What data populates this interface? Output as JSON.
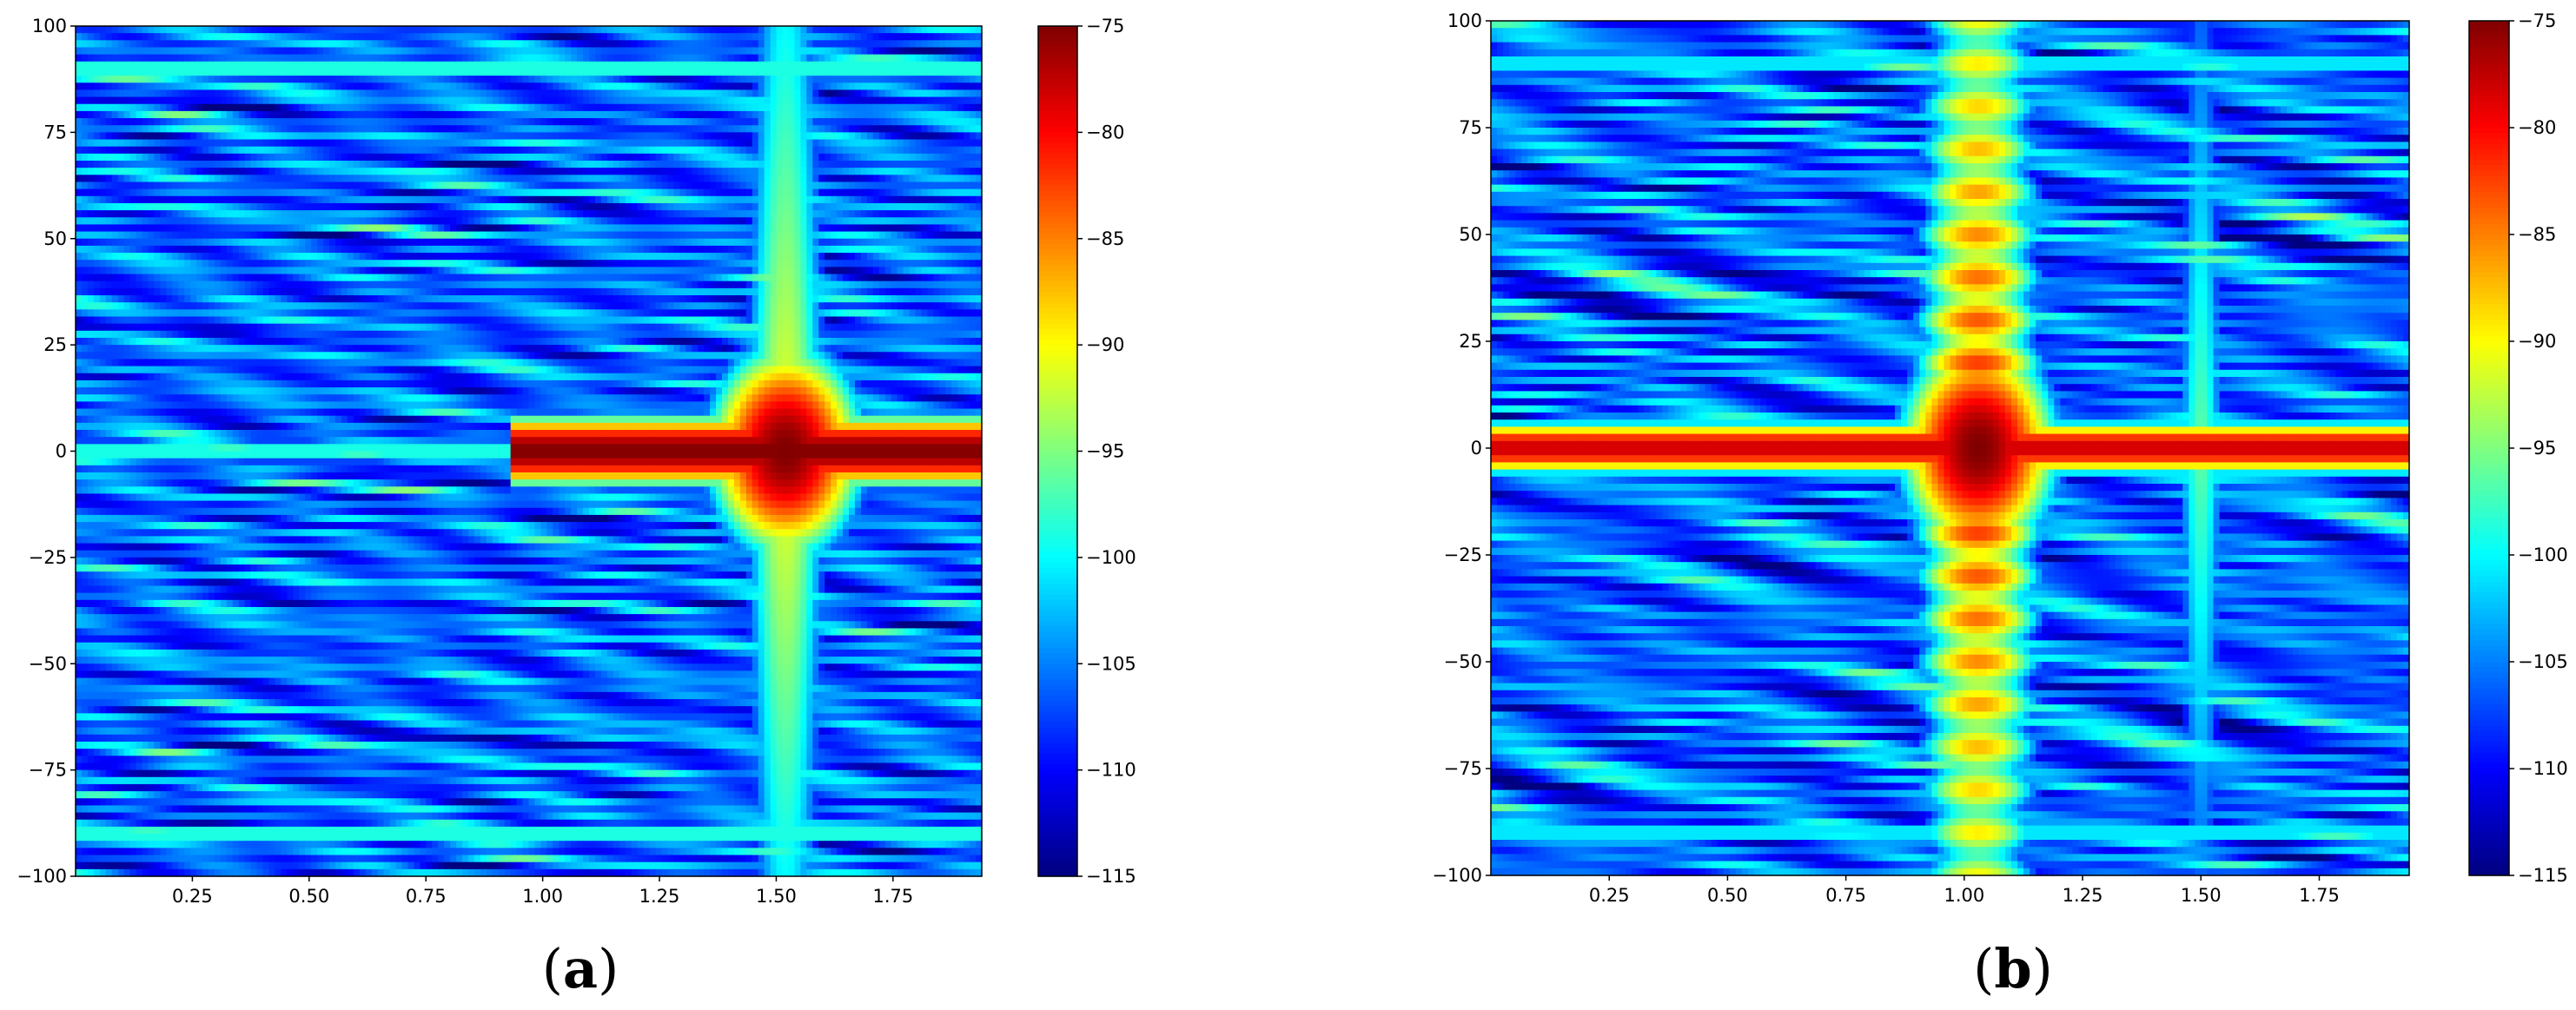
{
  "figure": {
    "panels": [
      {
        "label_open": "(",
        "label_letter": "a",
        "label_close": ")"
      },
      {
        "label_open": "(",
        "label_letter": "b",
        "label_close": ")"
      }
    ]
  },
  "chart_data": [
    {
      "type": "heatmap",
      "title": "",
      "xlabel": "",
      "ylabel": "",
      "xlim": [
        0.0,
        1.94
      ],
      "ylim": [
        -100,
        100
      ],
      "x_ticks": [
        0.25,
        0.5,
        0.75,
        1.0,
        1.25,
        1.5,
        1.75
      ],
      "x_tick_labels": [
        "0.25",
        "0.50",
        "0.75",
        "1.00",
        "1.25",
        "1.50",
        "1.75"
      ],
      "y_ticks": [
        100,
        75,
        50,
        25,
        0,
        -25,
        -50,
        -75,
        -100
      ],
      "y_tick_labels": [
        "100",
        "75",
        "50",
        "25",
        "0",
        "−25",
        "−50",
        "−75",
        "−100"
      ],
      "colorbar": {
        "colormap": "jet",
        "range": [
          -115,
          -75
        ],
        "ticks": [
          -75,
          -80,
          -85,
          -90,
          -95,
          -100,
          -105,
          -110,
          -115
        ],
        "tick_labels": [
          "−75",
          "−80",
          "−85",
          "−90",
          "−95",
          "−100",
          "−105",
          "−110",
          "−115"
        ]
      },
      "background_level": -106,
      "features": [
        {
          "kind": "horizontal_band",
          "y": 0,
          "x_from": 0.93,
          "x_to": 1.94,
          "value": -75,
          "half_width": 4
        },
        {
          "kind": "horizontal_band",
          "y": 0,
          "x_from": 0.0,
          "x_to": 0.93,
          "value": -98,
          "half_width": 2
        },
        {
          "kind": "vertical_band",
          "x": 1.52,
          "value": -90,
          "half_width": 0.05
        },
        {
          "kind": "hotspot",
          "x": 1.52,
          "y": 0,
          "value": -75
        },
        {
          "kind": "horizontal_band",
          "y": 90,
          "x_from": 0.0,
          "x_to": 1.94,
          "value": -97,
          "half_width": 1.5
        },
        {
          "kind": "horizontal_band",
          "y": -90,
          "x_from": 0.0,
          "x_to": 1.94,
          "value": -97,
          "half_width": 1.5
        }
      ]
    },
    {
      "type": "heatmap",
      "title": "",
      "xlabel": "",
      "ylabel": "",
      "xlim": [
        0.0,
        1.94
      ],
      "ylim": [
        -100,
        100
      ],
      "x_ticks": [
        0.25,
        0.5,
        0.75,
        1.0,
        1.25,
        1.5,
        1.75
      ],
      "x_tick_labels": [
        "0.25",
        "0.50",
        "0.75",
        "1.00",
        "1.25",
        "1.50",
        "1.75"
      ],
      "y_ticks": [
        100,
        75,
        50,
        25,
        0,
        -25,
        -50,
        -75,
        -100
      ],
      "y_tick_labels": [
        "100",
        "75",
        "50",
        "25",
        "0",
        "−25",
        "−50",
        "−75",
        "−100"
      ],
      "colorbar": {
        "colormap": "jet",
        "range": [
          -115,
          -75
        ],
        "ticks": [
          -75,
          -80,
          -85,
          -90,
          -95,
          -100,
          -105,
          -110,
          -115
        ],
        "tick_labels": [
          "−75",
          "−80",
          "−85",
          "−90",
          "−95",
          "−100",
          "−105",
          "−110",
          "−115"
        ]
      },
      "background_level": -106,
      "features": [
        {
          "kind": "horizontal_band",
          "y": 0,
          "x_from": 0.0,
          "x_to": 1.94,
          "value": -78,
          "half_width": 3
        },
        {
          "kind": "vertical_band",
          "x": 1.03,
          "value": -84,
          "half_width": 0.07,
          "modulated": true
        },
        {
          "kind": "hotspot",
          "x": 1.03,
          "y": 0,
          "value": -75
        },
        {
          "kind": "vertical_band",
          "x": 1.5,
          "value": -96,
          "half_width": 0.03
        },
        {
          "kind": "horizontal_band",
          "y": 90,
          "x_from": 0.0,
          "x_to": 1.94,
          "value": -98,
          "half_width": 1.2
        },
        {
          "kind": "horizontal_band",
          "y": -90,
          "x_from": 0.0,
          "x_to": 1.94,
          "value": -98,
          "half_width": 1.2
        }
      ]
    }
  ]
}
